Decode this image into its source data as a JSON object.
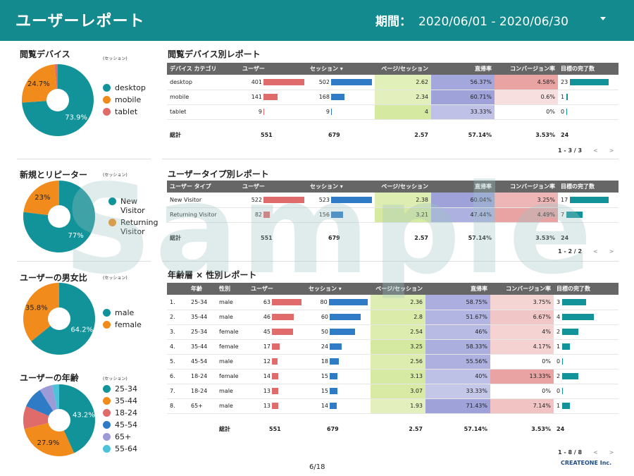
{
  "header": {
    "title": "ユーザーレポート",
    "period_label": "期間：",
    "period_value": "2020/06/01 - 2020/06/30"
  },
  "watermark": "Sample",
  "page_number": "6/18",
  "logo": "CREATEONE Inc.",
  "session_note": "(セッション)",
  "sections": {
    "device": {
      "title": "閲覧デバイス",
      "legend": [
        "desktop",
        "mobile",
        "tablet"
      ],
      "pie": [
        {
          "label": "desktop",
          "value": 73.9,
          "pct": "73.9%",
          "color": "#12939a"
        },
        {
          "label": "mobile",
          "value": 24.7,
          "pct": "24.7%",
          "color": "#f18b1b"
        },
        {
          "label": "tablet",
          "value": 1.4,
          "pct": "",
          "color": "#e06b6b"
        }
      ]
    },
    "newrep": {
      "title": "新規とリピーター",
      "legend": [
        "New Visitor",
        "Returning Visitor"
      ],
      "pie": [
        {
          "label": "New Visitor",
          "value": 77,
          "pct": "77%",
          "color": "#12939a"
        },
        {
          "label": "Returning Visitor",
          "value": 23,
          "pct": "23%",
          "color": "#f18b1b"
        }
      ]
    },
    "gender": {
      "title": "ユーザーの男女比",
      "legend": [
        "male",
        "female"
      ],
      "pie": [
        {
          "label": "male",
          "value": 64.2,
          "pct": "64.2%",
          "color": "#12939a"
        },
        {
          "label": "female",
          "value": 35.8,
          "pct": "35.8%",
          "color": "#f18b1b"
        }
      ]
    },
    "age": {
      "title": "ユーザーの年齢",
      "legend": [
        "25-34",
        "35-44",
        "18-24",
        "45-54",
        "65+",
        "55-64"
      ],
      "pie": [
        {
          "label": "25-34",
          "value": 43.2,
          "pct": "43.2%",
          "color": "#12939a"
        },
        {
          "label": "35-44",
          "value": 27.9,
          "pct": "27.9%",
          "color": "#f18b1b"
        },
        {
          "label": "18-24",
          "value": 10.3,
          "pct": "",
          "color": "#e06b6b"
        },
        {
          "label": "45-54",
          "value": 9.6,
          "pct": "",
          "color": "#2f7bc6"
        },
        {
          "label": "65+",
          "value": 5.9,
          "pct": "",
          "color": "#9d9ad8"
        },
        {
          "label": "55-64",
          "value": 3.1,
          "pct": "",
          "color": "#4cc3d9"
        }
      ]
    }
  },
  "device_table": {
    "title": "閲覧デバイス別レポート",
    "headers": [
      "デバイス カテゴリ",
      "ユーザー",
      "セッション ▾",
      "ページ/セッション",
      "直帰率",
      "コンバージョン率",
      "目標の完了数"
    ],
    "rows": [
      {
        "c": "desktop",
        "u": 401,
        "s": 502,
        "p": "2.62",
        "b": "56.37%",
        "cv": "4.58%",
        "g": 23
      },
      {
        "c": "mobile",
        "u": 141,
        "s": 168,
        "p": "2.34",
        "b": "60.71%",
        "cv": "0.6%",
        "g": 1
      },
      {
        "c": "tablet",
        "u": 9,
        "s": 9,
        "p": "4",
        "b": "33.33%",
        "cv": "0%",
        "g": 0
      }
    ],
    "total": {
      "label": "総計",
      "u": "551",
      "s": "679",
      "p": "2.57",
      "b": "57.14%",
      "cv": "3.53%",
      "g": "24"
    },
    "pager": "1 - 3 / 3"
  },
  "type_table": {
    "title": "ユーザータイプ別レポート",
    "headers": [
      "ユーザー タイプ",
      "ユーザー",
      "セッション ▾",
      "ページ/セッション",
      "直帰率",
      "コンバージョン率",
      "目標の完了数"
    ],
    "rows": [
      {
        "c": "New Visitor",
        "u": 522,
        "s": 523,
        "p": "2.38",
        "b": "60.04%",
        "cv": "3.25%",
        "g": 17
      },
      {
        "c": "Returning Visitor",
        "u": 82,
        "s": 156,
        "p": "3.21",
        "b": "47.44%",
        "cv": "4.49%",
        "g": 7
      }
    ],
    "total": {
      "label": "総計",
      "u": "551",
      "s": "679",
      "p": "2.57",
      "b": "57.14%",
      "cv": "3.53%",
      "g": "24"
    },
    "pager": "1 - 2 / 2"
  },
  "age_table": {
    "title": "年齢層 × 性別レポート",
    "headers": [
      "",
      "年齢",
      "性別",
      "ユーザー",
      "セッション ▾",
      "ページ/セッション",
      "直帰率",
      "コンバージョン率",
      "目標の完了数"
    ],
    "rows": [
      {
        "n": "1.",
        "a": "25-34",
        "g2": "male",
        "u": 63,
        "s": 80,
        "p": "2.36",
        "b": "58.75%",
        "cv": "3.75%",
        "g": 3
      },
      {
        "n": "2.",
        "a": "35-44",
        "g2": "male",
        "u": 46,
        "s": 60,
        "p": "2.8",
        "b": "51.67%",
        "cv": "6.67%",
        "g": 4
      },
      {
        "n": "3.",
        "a": "25-34",
        "g2": "female",
        "u": 45,
        "s": 50,
        "p": "2.54",
        "b": "46%",
        "cv": "4%",
        "g": 2
      },
      {
        "n": "4.",
        "a": "35-44",
        "g2": "female",
        "u": 17,
        "s": 24,
        "p": "3.25",
        "b": "58.33%",
        "cv": "4.17%",
        "g": 1
      },
      {
        "n": "5.",
        "a": "45-54",
        "g2": "male",
        "u": 12,
        "s": 18,
        "p": "2.56",
        "b": "55.56%",
        "cv": "0%",
        "g": 0
      },
      {
        "n": "6.",
        "a": "18-24",
        "g2": "female",
        "u": 14,
        "s": 15,
        "p": "3.13",
        "b": "40%",
        "cv": "13.33%",
        "g": 2
      },
      {
        "n": "7.",
        "a": "18-24",
        "g2": "male",
        "u": 13,
        "s": 15,
        "p": "3.07",
        "b": "33.33%",
        "cv": "0%",
        "g": 0
      },
      {
        "n": "8.",
        "a": "65+",
        "g2": "male",
        "u": 13,
        "s": 14,
        "p": "1.93",
        "b": "71.43%",
        "cv": "7.14%",
        "g": 1
      }
    ],
    "total": {
      "label": "総計",
      "u": "551",
      "s": "679",
      "p": "2.57",
      "b": "57.14%",
      "cv": "3.53%",
      "g": "24"
    },
    "pager": "1 - 8 / 8"
  },
  "colors": {
    "header": "#138a8d",
    "user_bar": "#e06b6b",
    "session_bar": "#2f7bc6",
    "goal_bar": "#12939a",
    "pps_bg": "#e9f3c9",
    "bounce_bg": "#c9cbe9",
    "conv_bg": "#f3c9c9"
  }
}
